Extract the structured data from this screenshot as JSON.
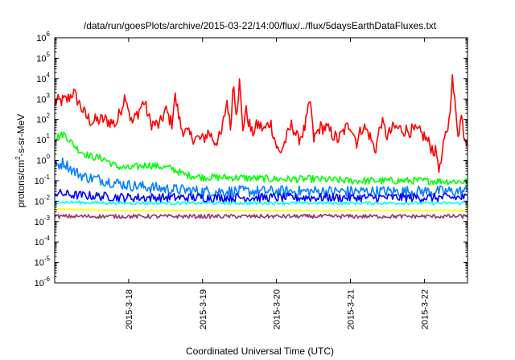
{
  "chart_data": {
    "type": "line",
    "title": "/data/run/goesPlots/archive/2015-03-22/14:00/flux/../flux/5daysEarthDataFluxes.txt",
    "xlabel": "Coordinated Universal Time (UTC)",
    "ylabel": {
      "prefix": "protons/cm",
      "superscript": "2",
      "suffix": "-s-sr-MeV"
    },
    "yscale": "log",
    "ylim": [
      1e-06,
      1000000.0
    ],
    "y_ticks": [
      {
        "base": "10",
        "exp": "-6",
        "value": 1e-06
      },
      {
        "base": "10",
        "exp": "-5",
        "value": 1e-05
      },
      {
        "base": "10",
        "exp": "-4",
        "value": 0.0001
      },
      {
        "base": "10",
        "exp": "-3",
        "value": 0.001
      },
      {
        "base": "10",
        "exp": "-2",
        "value": 0.01
      },
      {
        "base": "10",
        "exp": "-1",
        "value": 0.1
      },
      {
        "base": "10",
        "exp": "0",
        "value": 1
      },
      {
        "base": "10",
        "exp": "1",
        "value": 10.0
      },
      {
        "base": "10",
        "exp": "2",
        "value": 100.0
      },
      {
        "base": "10",
        "exp": "3",
        "value": 1000.0
      },
      {
        "base": "10",
        "exp": "4",
        "value": 10000.0
      },
      {
        "base": "10",
        "exp": "5",
        "value": 100000.0
      },
      {
        "base": "10",
        "exp": "6",
        "value": 1000000.0
      }
    ],
    "xlim": [
      "2015-03-17T00:00",
      "2015-03-22T14:00"
    ],
    "x_ticks": [
      {
        "label": "2015-3-18",
        "value": "2015-03-18T00:00"
      },
      {
        "label": "2015-3-19",
        "value": "2015-03-19T00:00"
      },
      {
        "label": "2015-3-20",
        "value": "2015-03-20T00:00"
      },
      {
        "label": "2015-3-21",
        "value": "2015-03-21T00:00"
      },
      {
        "label": "2015-3-22",
        "value": "2015-03-22T00:00"
      }
    ],
    "grid": false,
    "legend": "none",
    "series": [
      {
        "color": "#ff0000",
        "jitter": 0.35,
        "points": [
          [
            "2015-03-17T00:00",
            700
          ],
          [
            "2015-03-17T04:00",
            900
          ],
          [
            "2015-03-17T06:00",
            2200
          ],
          [
            "2015-03-17T08:00",
            600
          ],
          [
            "2015-03-17T10:00",
            150
          ],
          [
            "2015-03-17T12:00",
            80
          ],
          [
            "2015-03-17T16:00",
            100
          ],
          [
            "2015-03-17T20:00",
            60
          ],
          [
            "2015-03-17T23:00",
            1800
          ],
          [
            "2015-03-18T01:00",
            60
          ],
          [
            "2015-03-18T05:00",
            800
          ],
          [
            "2015-03-18T07:00",
            70
          ],
          [
            "2015-03-18T10:00",
            50
          ],
          [
            "2015-03-18T12:00",
            300
          ],
          [
            "2015-03-18T14:00",
            60
          ],
          [
            "2015-03-18T15:00",
            1500
          ],
          [
            "2015-03-18T17:00",
            40
          ],
          [
            "2015-03-18T20:00",
            15
          ],
          [
            "2015-03-19T00:00",
            10
          ],
          [
            "2015-03-19T02:00",
            25
          ],
          [
            "2015-03-19T04:00",
            8
          ],
          [
            "2015-03-19T06:00",
            15
          ],
          [
            "2015-03-19T08:00",
            1000
          ],
          [
            "2015-03-19T09:00",
            30
          ],
          [
            "2015-03-19T10:00",
            8000
          ],
          [
            "2015-03-19T11:00",
            200
          ],
          [
            "2015-03-19T12:00",
            7000
          ],
          [
            "2015-03-19T13:00",
            30
          ],
          [
            "2015-03-19T14:00",
            300
          ],
          [
            "2015-03-19T16:00",
            20
          ],
          [
            "2015-03-19T18:00",
            60
          ],
          [
            "2015-03-19T20:00",
            30
          ],
          [
            "2015-03-19T22:00",
            80
          ],
          [
            "2015-03-20T00:00",
            5
          ],
          [
            "2015-03-20T01:00",
            2
          ],
          [
            "2015-03-20T03:00",
            10
          ],
          [
            "2015-03-20T05:00",
            60
          ],
          [
            "2015-03-20T07:00",
            10
          ],
          [
            "2015-03-20T09:00",
            30
          ],
          [
            "2015-03-20T11:00",
            800
          ],
          [
            "2015-03-20T12:00",
            10
          ],
          [
            "2015-03-20T14:00",
            40
          ],
          [
            "2015-03-20T16:00",
            40
          ],
          [
            "2015-03-20T18:00",
            20
          ],
          [
            "2015-03-20T20:00",
            10
          ],
          [
            "2015-03-20T22:00",
            30
          ],
          [
            "2015-03-21T00:00",
            60
          ],
          [
            "2015-03-21T02:00",
            8
          ],
          [
            "2015-03-21T04:00",
            50
          ],
          [
            "2015-03-21T06:00",
            20
          ],
          [
            "2015-03-21T08:00",
            3
          ],
          [
            "2015-03-21T10:00",
            80
          ],
          [
            "2015-03-21T12:00",
            15
          ],
          [
            "2015-03-21T14:00",
            40
          ],
          [
            "2015-03-21T18:00",
            30
          ],
          [
            "2015-03-21T22:00",
            25
          ],
          [
            "2015-03-22T00:00",
            15
          ],
          [
            "2015-03-22T02:00",
            5
          ],
          [
            "2015-03-22T04:00",
            2
          ],
          [
            "2015-03-22T05:00",
            0.3
          ],
          [
            "2015-03-22T06:00",
            3
          ],
          [
            "2015-03-22T07:00",
            20
          ],
          [
            "2015-03-22T08:00",
            80
          ],
          [
            "2015-03-22T09:00",
            12000
          ],
          [
            "2015-03-22T10:00",
            400
          ],
          [
            "2015-03-22T11:00",
            20
          ],
          [
            "2015-03-22T12:00",
            150
          ],
          [
            "2015-03-22T13:00",
            15
          ],
          [
            "2015-03-22T14:00",
            8
          ]
        ]
      },
      {
        "color": "#00ff00",
        "jitter": 0.18,
        "points": [
          [
            "2015-03-17T00:00",
            12
          ],
          [
            "2015-03-17T03:00",
            20
          ],
          [
            "2015-03-17T06:00",
            6
          ],
          [
            "2015-03-17T08:00",
            3
          ],
          [
            "2015-03-17T10:00",
            2
          ],
          [
            "2015-03-17T12:00",
            1.5
          ],
          [
            "2015-03-17T16:00",
            1.2
          ],
          [
            "2015-03-17T20:00",
            0.5
          ],
          [
            "2015-03-18T00:00",
            0.4
          ],
          [
            "2015-03-18T06:00",
            0.6
          ],
          [
            "2015-03-18T10:00",
            0.5
          ],
          [
            "2015-03-18T14:00",
            0.4
          ],
          [
            "2015-03-18T18:00",
            0.2
          ],
          [
            "2015-03-19T00:00",
            0.15
          ],
          [
            "2015-03-19T12:00",
            0.14
          ],
          [
            "2015-03-20T00:00",
            0.12
          ],
          [
            "2015-03-20T12:00",
            0.12
          ],
          [
            "2015-03-21T00:00",
            0.1
          ],
          [
            "2015-03-21T12:00",
            0.1
          ],
          [
            "2015-03-22T00:00",
            0.1
          ],
          [
            "2015-03-22T14:00",
            0.09
          ]
        ]
      },
      {
        "color": "#0080ff",
        "jitter": 0.28,
        "points": [
          [
            "2015-03-17T00:00",
            0.5
          ],
          [
            "2015-03-17T03:00",
            0.8
          ],
          [
            "2015-03-17T06:00",
            0.3
          ],
          [
            "2015-03-17T10:00",
            0.15
          ],
          [
            "2015-03-17T14:00",
            0.12
          ],
          [
            "2015-03-18T00:00",
            0.06
          ],
          [
            "2015-03-18T12:00",
            0.04
          ],
          [
            "2015-03-19T00:00",
            0.03
          ],
          [
            "2015-03-20T00:00",
            0.03
          ],
          [
            "2015-03-21T00:00",
            0.03
          ],
          [
            "2015-03-22T00:00",
            0.03
          ],
          [
            "2015-03-22T14:00",
            0.03
          ]
        ]
      },
      {
        "color": "#0000ff",
        "jitter": 0.22,
        "points": [
          [
            "2015-03-17T00:00",
            0.025
          ],
          [
            "2015-03-17T06:00",
            0.02
          ],
          [
            "2015-03-18T00:00",
            0.015
          ],
          [
            "2015-03-19T00:00",
            0.015
          ],
          [
            "2015-03-20T00:00",
            0.015
          ],
          [
            "2015-03-21T00:00",
            0.015
          ],
          [
            "2015-03-22T00:00",
            0.015
          ],
          [
            "2015-03-22T14:00",
            0.015
          ]
        ]
      },
      {
        "color": "#00ffff",
        "jitter": 0.08,
        "points": [
          [
            "2015-03-17T00:00",
            0.009
          ],
          [
            "2015-03-18T00:00",
            0.008
          ],
          [
            "2015-03-19T00:00",
            0.008
          ],
          [
            "2015-03-20T00:00",
            0.008
          ],
          [
            "2015-03-21T00:00",
            0.008
          ],
          [
            "2015-03-22T00:00",
            0.008
          ],
          [
            "2015-03-22T14:00",
            0.008
          ]
        ]
      },
      {
        "color": "#ffff00",
        "jitter": 0.04,
        "points": [
          [
            "2015-03-17T00:00",
            0.004
          ],
          [
            "2015-03-18T00:00",
            0.0035
          ],
          [
            "2015-03-19T00:00",
            0.0035
          ],
          [
            "2015-03-20T00:00",
            0.0035
          ],
          [
            "2015-03-21T00:00",
            0.0035
          ],
          [
            "2015-03-22T00:00",
            0.0035
          ],
          [
            "2015-03-22T14:00",
            0.0035
          ]
        ]
      },
      {
        "color": "#993366",
        "jitter": 0.1,
        "points": [
          [
            "2015-03-17T00:00",
            0.0018
          ],
          [
            "2015-03-18T00:00",
            0.0018
          ],
          [
            "2015-03-19T00:00",
            0.0018
          ],
          [
            "2015-03-20T00:00",
            0.0018
          ],
          [
            "2015-03-21T00:00",
            0.0018
          ],
          [
            "2015-03-22T00:00",
            0.0018
          ],
          [
            "2015-03-22T14:00",
            0.0018
          ]
        ]
      }
    ]
  }
}
